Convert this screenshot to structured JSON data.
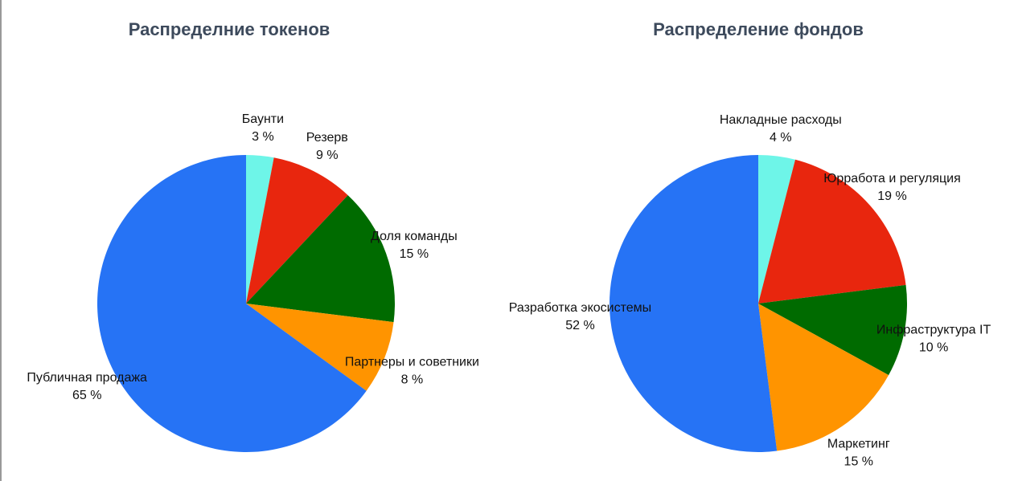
{
  "chart_data": [
    {
      "type": "pie",
      "title": "Распределние токенов",
      "categories": [
        "Баунти",
        "Резерв",
        "Доля команды",
        "Партнеры и советники",
        "Публичная продажа"
      ],
      "values": [
        3,
        9,
        15,
        8,
        65
      ],
      "value_labels": [
        "3 %",
        "9 %",
        "15 %",
        "8 %",
        "65 %"
      ],
      "colors": [
        "#6ef5e8",
        "#e8260e",
        "#006b00",
        "#ff9400",
        "#2673f5"
      ]
    },
    {
      "type": "pie",
      "title": "Распределение фондов",
      "categories": [
        "Накладные расходы",
        "Юрработа и регуляция",
        "Инфраструктура IT",
        "Маркетинг",
        "Разработка экосистемы"
      ],
      "values": [
        4,
        19,
        10,
        15,
        52
      ],
      "value_labels": [
        "4 %",
        "19 %",
        "10 %",
        "15 %",
        "52 %"
      ],
      "colors": [
        "#6ef5e8",
        "#e8260e",
        "#006b00",
        "#ff9400",
        "#2673f5"
      ]
    }
  ]
}
